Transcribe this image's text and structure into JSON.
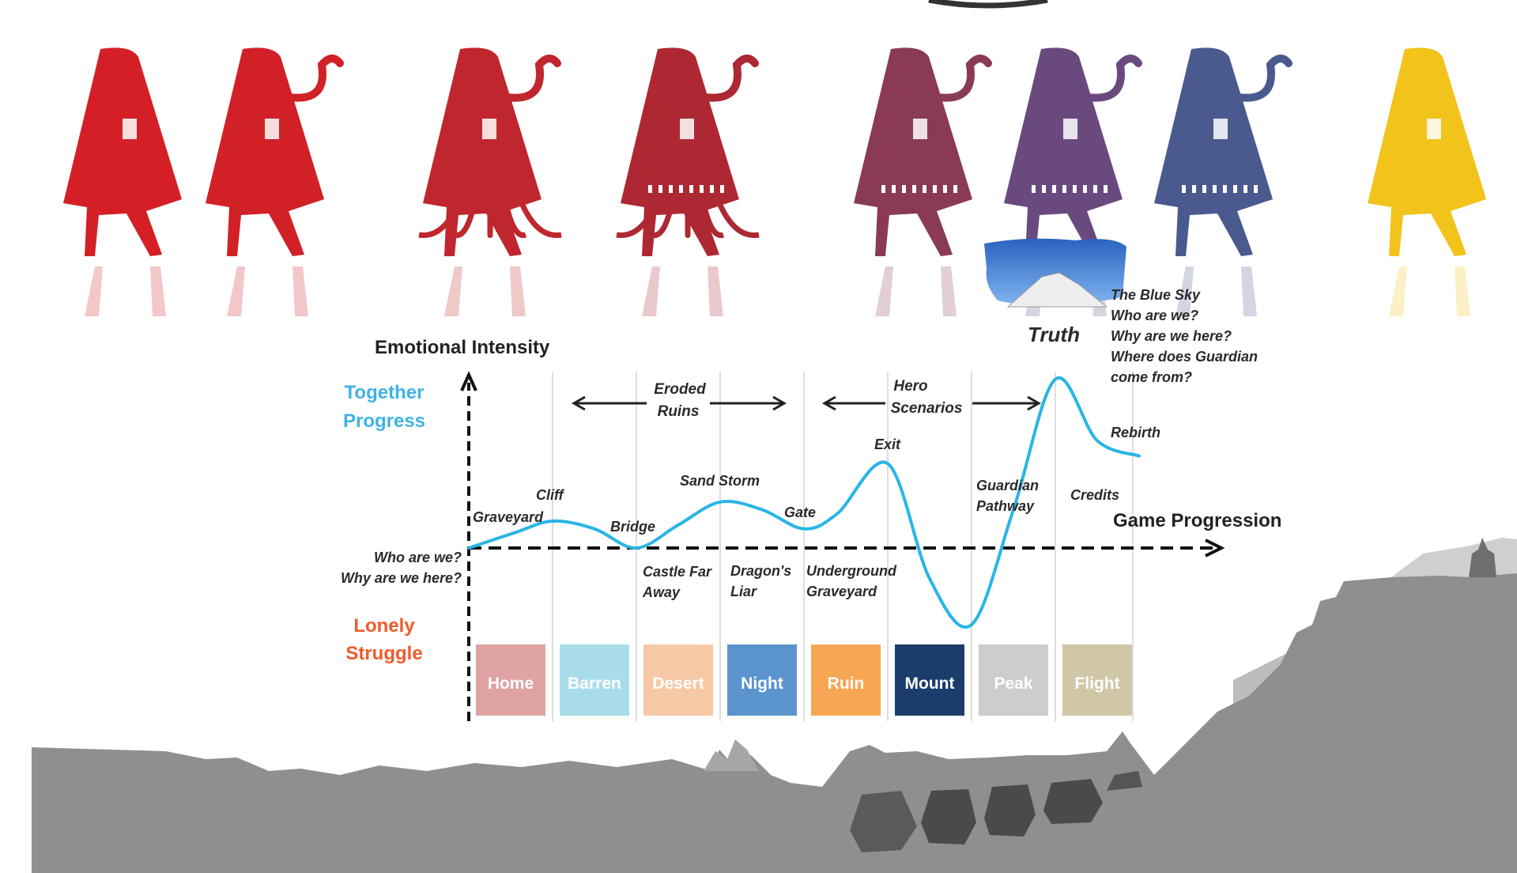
{
  "axis": {
    "y_title": "Emotional Intensity",
    "x_title": "Game Progression",
    "top_label": [
      "Together",
      "Progress"
    ],
    "bottom_label": [
      "Lonely",
      "Struggle"
    ]
  },
  "colors": {
    "curve": "#29b5e6",
    "together": "#3fb2e6",
    "lonely": "#ef5a2b",
    "ground": "#8f8f8f",
    "ground_light": "#c9c9c9",
    "ground_dark": "#4a4a4a",
    "robe_gold": "#f2c31a"
  },
  "figures": [
    {
      "name": "figure-1",
      "color": "#d41f26"
    },
    {
      "name": "figure-2",
      "color": "#d12026"
    },
    {
      "name": "figure-3",
      "color": "#c0262d"
    },
    {
      "name": "figure-4",
      "color": "#ad2833"
    },
    {
      "name": "figure-5",
      "color": "#8a3a56"
    },
    {
      "name": "figure-6",
      "color": "#6a4a7e"
    },
    {
      "name": "figure-7",
      "color": "#4a5a8f"
    },
    {
      "name": "figure-8",
      "color": "#f2c31a"
    }
  ],
  "ranges": [
    {
      "label_lines": [
        "Eroded",
        "Ruins"
      ]
    },
    {
      "label_lines": [
        "Hero",
        "Scenarios"
      ]
    }
  ],
  "annotations": {
    "start_question": [
      "Who are we?",
      "Why are we here?"
    ],
    "graveyard": "Graveyard",
    "cliff": "Cliff",
    "bridge": "Bridge",
    "sand_storm": "Sand Storm",
    "gate": "Gate",
    "exit": "Exit",
    "guardian_pathway": [
      "Guardian",
      "Pathway"
    ],
    "truth": "Truth",
    "credits": "Credits",
    "rebirth": "Rebirth",
    "blue_sky": [
      "The Blue Sky",
      "Who are we?",
      "Why are we here?",
      "Where does Guardian",
      "come from?"
    ],
    "castle_far_away": [
      "Castle Far",
      "Away"
    ],
    "dragons_liar": [
      "Dragon's",
      "Liar"
    ],
    "underground_graveyard": [
      "Underground",
      "Graveyard"
    ]
  },
  "zones": [
    {
      "label": "Home",
      "color": "#dfa3a3"
    },
    {
      "label": "Barren",
      "color": "#a9dcea"
    },
    {
      "label": "Desert",
      "color": "#f6c8a5"
    },
    {
      "label": "Night",
      "color": "#5b93cf"
    },
    {
      "label": "Ruin",
      "color": "#f7a653"
    },
    {
      "label": "Mount",
      "color": "#1a3d6b"
    },
    {
      "label": "Peak",
      "color": "#cdcdcd"
    },
    {
      "label": "Flight",
      "color": "#cfc7a5"
    }
  ],
  "chart_data": {
    "type": "line",
    "xlabel": "Game Progression",
    "ylabel": "Emotional Intensity",
    "categories": [
      "Home",
      "Barren",
      "Desert",
      "Night",
      "Ruin",
      "Mount",
      "Peak",
      "Flight"
    ],
    "series": [
      {
        "values": [
          {
            "x": 0.0,
            "y": 0.0
          },
          {
            "x": 0.55,
            "y": 0.2
          },
          {
            "x": 1.0,
            "y": 0.35
          },
          {
            "x": 1.5,
            "y": 0.25
          },
          {
            "x": 2.0,
            "y": 0.0
          },
          {
            "x": 2.5,
            "y": 0.3
          },
          {
            "x": 3.0,
            "y": 0.6
          },
          {
            "x": 3.5,
            "y": 0.5
          },
          {
            "x": 4.0,
            "y": 0.25
          },
          {
            "x": 4.4,
            "y": 0.45
          },
          {
            "x": 5.0,
            "y": 1.1
          },
          {
            "x": 5.5,
            "y": -0.4
          },
          {
            "x": 6.0,
            "y": -1.0
          },
          {
            "x": 6.5,
            "y": 0.5
          },
          {
            "x": 7.0,
            "y": 2.2
          },
          {
            "x": 7.5,
            "y": 1.4
          },
          {
            "x": 8.0,
            "y": 1.2
          }
        ]
      }
    ],
    "annotations": [
      {
        "label": "Graveyard",
        "x": 0.55,
        "y": 0.2
      },
      {
        "label": "Cliff",
        "x": 1.0,
        "y": 0.35
      },
      {
        "label": "Bridge",
        "x": 2.0,
        "y": 0.0
      },
      {
        "label": "Sand Storm",
        "x": 3.0,
        "y": 0.6
      },
      {
        "label": "Gate",
        "x": 4.0,
        "y": 0.25
      },
      {
        "label": "Exit",
        "x": 5.0,
        "y": 1.1
      },
      {
        "label": "Truth",
        "x": 7.0,
        "y": 2.2
      },
      {
        "label": "Rebirth",
        "x": 8.0,
        "y": 1.2
      }
    ]
  }
}
